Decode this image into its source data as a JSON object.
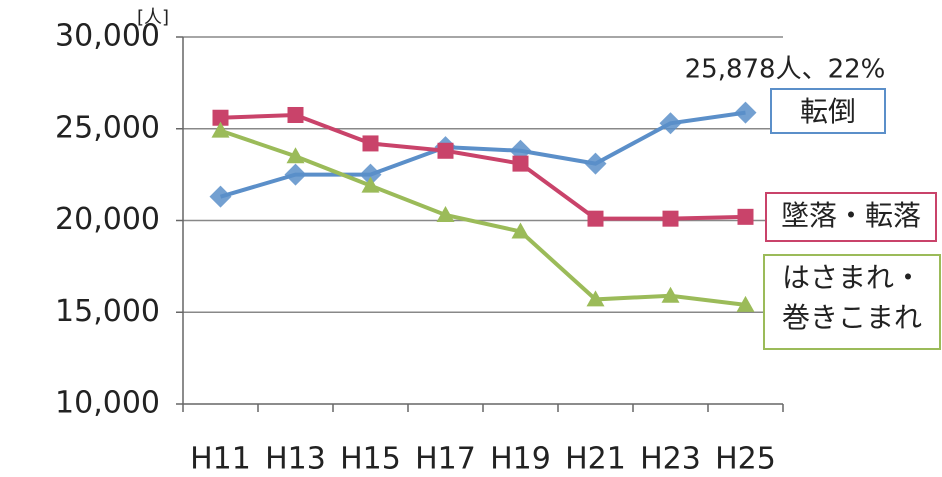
{
  "chart_data": {
    "type": "line",
    "y_unit": "[人]",
    "annotation": "25,878人、22%",
    "categories": [
      "H11",
      "H13",
      "H15",
      "H17",
      "H19",
      "H21",
      "H23",
      "H25"
    ],
    "series": [
      {
        "name": "転倒",
        "color": "#5b8fc9",
        "marker": "diamond",
        "values": [
          21300,
          22500,
          22500,
          24000,
          23800,
          23100,
          25300,
          25878
        ]
      },
      {
        "name": "墜落・転落",
        "color": "#c9436a",
        "marker": "square",
        "values": [
          25600,
          25750,
          24200,
          23800,
          23100,
          20100,
          20100,
          20200
        ]
      },
      {
        "name": "はさまれ・巻きこまれ",
        "color": "#9bbb59",
        "marker": "triangle",
        "values": [
          24900,
          23500,
          21900,
          20300,
          19400,
          15700,
          15900,
          15400
        ]
      }
    ],
    "ylim": [
      10000,
      30000
    ],
    "yticks": [
      {
        "value": 10000,
        "label": "10,000"
      },
      {
        "value": 15000,
        "label": "15,000"
      },
      {
        "value": 20000,
        "label": "20,000"
      },
      {
        "value": 25000,
        "label": "25,000"
      },
      {
        "value": 30000,
        "label": "30,000"
      }
    ],
    "grid": true
  }
}
